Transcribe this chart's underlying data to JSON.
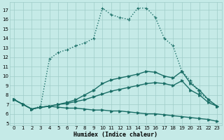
{
  "xlabel": "Humidex (Indice chaleur)",
  "xlim": [
    -0.5,
    23.5
  ],
  "ylim": [
    4.8,
    17.8
  ],
  "yticks": [
    5,
    6,
    7,
    8,
    9,
    10,
    11,
    12,
    13,
    14,
    15,
    16,
    17
  ],
  "xticks": [
    0,
    1,
    2,
    3,
    4,
    5,
    6,
    7,
    8,
    9,
    10,
    11,
    12,
    13,
    14,
    15,
    16,
    17,
    18,
    19,
    20,
    21,
    22,
    23
  ],
  "bg_color": "#c5eae7",
  "grid_color": "#9fccc8",
  "line_color": "#1a6e66",
  "lines": [
    {
      "x": [
        0,
        1,
        2,
        3,
        4,
        5,
        6,
        7,
        8,
        9,
        10,
        11,
        12,
        13,
        14,
        15,
        16,
        17,
        18,
        19,
        20,
        21,
        22,
        23
      ],
      "y": [
        7.5,
        7.0,
        6.5,
        6.7,
        6.8,
        6.7,
        6.6,
        6.6,
        6.5,
        6.4,
        6.4,
        6.3,
        6.3,
        6.2,
        6.1,
        6.0,
        6.0,
        5.9,
        5.8,
        5.7,
        5.6,
        5.5,
        5.4,
        5.2
      ],
      "marker": ">",
      "linestyle": "-"
    },
    {
      "x": [
        0,
        1,
        2,
        3,
        4,
        5,
        6,
        7,
        8,
        9,
        10,
        11,
        12,
        13,
        14,
        15,
        16,
        17,
        18,
        19,
        20,
        21,
        22,
        23
      ],
      "y": [
        7.5,
        7.0,
        6.5,
        6.7,
        6.8,
        7.0,
        7.1,
        7.3,
        7.5,
        7.8,
        8.1,
        8.4,
        8.6,
        8.8,
        9.0,
        9.2,
        9.3,
        9.2,
        9.0,
        9.5,
        8.5,
        8.0,
        7.2,
        6.8
      ],
      "marker": ">",
      "linestyle": "-"
    },
    {
      "x": [
        0,
        1,
        2,
        3,
        4,
        5,
        6,
        7,
        8,
        9,
        10,
        11,
        12,
        13,
        14,
        15,
        16,
        17,
        18,
        19,
        20,
        21,
        22,
        23
      ],
      "y": [
        7.5,
        7.0,
        6.5,
        6.7,
        6.8,
        7.0,
        7.2,
        7.5,
        8.0,
        8.5,
        9.2,
        9.6,
        9.8,
        10.0,
        10.2,
        10.5,
        10.4,
        10.0,
        9.8,
        10.5,
        9.2,
        8.5,
        7.5,
        6.8
      ],
      "marker": ">",
      "linestyle": "-"
    },
    {
      "x": [
        0,
        1,
        2,
        3,
        4,
        5,
        6,
        7,
        8,
        9,
        10,
        11,
        12,
        13,
        14,
        15,
        16,
        17,
        18,
        19,
        20,
        21,
        22,
        23
      ],
      "y": [
        7.5,
        7.0,
        6.5,
        6.8,
        11.8,
        12.5,
        12.8,
        13.2,
        13.5,
        14.0,
        17.2,
        16.5,
        16.2,
        16.0,
        17.2,
        17.2,
        16.2,
        14.0,
        13.2,
        10.5,
        9.5,
        8.2,
        7.5,
        6.8
      ],
      "marker": "+",
      "linestyle": ":"
    }
  ]
}
